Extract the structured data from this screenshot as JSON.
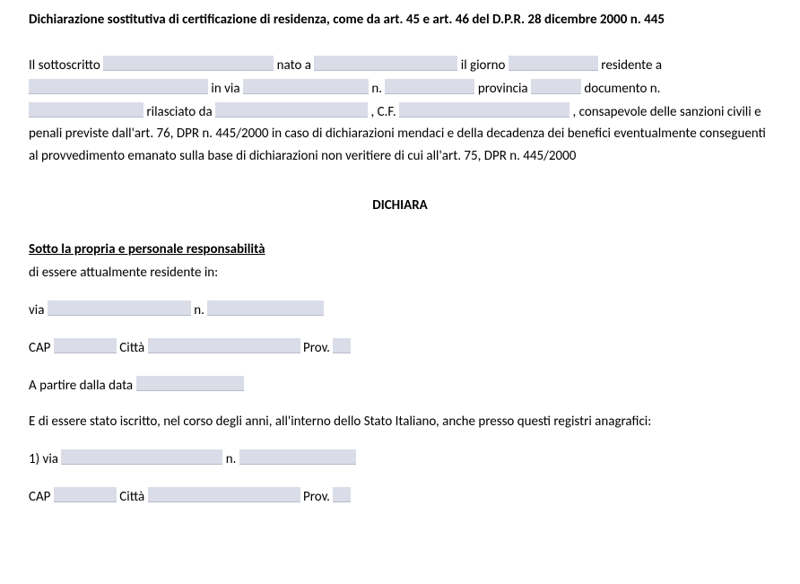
{
  "title": "Dichiarazione sostitutiva di certificazione di residenza, come da art. 45 e art. 46 del D.P.R. 28 dicembre 2000 n. 445",
  "p1": {
    "t1": "Il sottoscritto",
    "t2": "nato a",
    "t3": "il giorno",
    "t4": "residente a",
    "t5": "in via",
    "t6": "n.",
    "t7": "provincia",
    "t8": "documento n.",
    "t9": "rilasciato da",
    "t10": ", C.F.",
    "t11": ", consapevole delle sanzioni civili e penali previste dall'art. 76, DPR n. 445/2000 in caso di dichiarazioni mendaci e della decadenza dei benefici eventualmente conseguenti al provvedimento emanato sulla base di dichiarazioni non veritiere di cui all'art. 75, DPR n. 445/2000"
  },
  "heading": "DICHIARA",
  "subheading": "Sotto la propria e personale responsabilità",
  "line_intro": "di essere attualmente residente in:",
  "addr": {
    "via": "via",
    "n": "n.",
    "cap": "CAP",
    "citta": "Città",
    "prov": "Prov.",
    "a_partire": "A partire dalla data"
  },
  "line_registri": "E di essere stato iscritto, nel corso degli anni, all'interno dello Stato Italiano, anche presso questi registri anagrafici:",
  "list1": {
    "via": "1) via",
    "n": "n.",
    "cap": "CAP",
    "citta": "Città",
    "prov": "Prov."
  },
  "field_widths": {
    "sottoscritto": 190,
    "nato_a": 160,
    "giorno": 100,
    "residente_a": 200,
    "in_via": 140,
    "n": 100,
    "provincia": 56,
    "documento_n": 128,
    "rilasciato_da": 170,
    "cf": 190,
    "addr_via": 160,
    "addr_n": 130,
    "addr_cap": 70,
    "addr_citta": 170,
    "addr_prov": 20,
    "a_partire": 120,
    "l1_via": 180,
    "l1_n": 130,
    "l1_cap": 70,
    "l1_citta": 170,
    "l1_prov": 20
  },
  "colors": {
    "field_bg": "#dadce8",
    "text": "#000000"
  }
}
